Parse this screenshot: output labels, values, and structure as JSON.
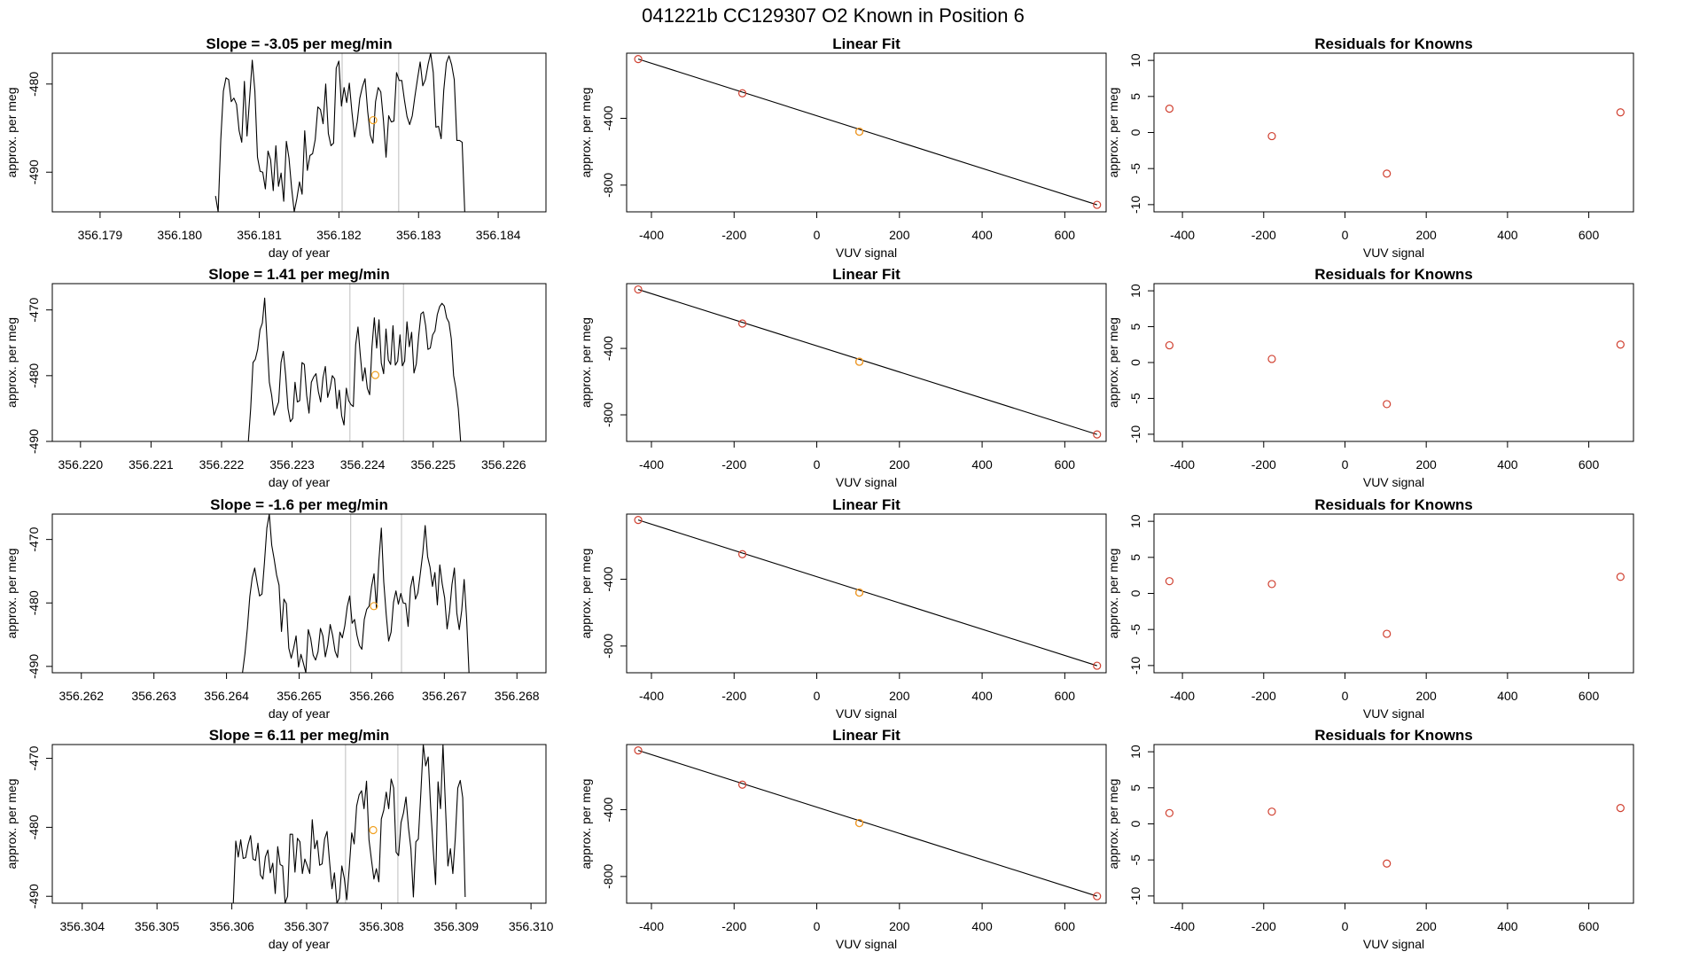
{
  "figure": {
    "title": "041221b     CC129307   O2 Known in Position  6"
  },
  "chart_data": [
    {
      "type": "line",
      "title": "Slope =  -3.05  per meg/min",
      "xlabel": "day of year",
      "ylabel": "approx. per meg",
      "xlim": [
        356.1784,
        356.1846
      ],
      "ylim": [
        -494.5,
        -476.5
      ],
      "xticks": [
        "356.179",
        "356.180",
        "356.181",
        "356.182",
        "356.183",
        "356.184"
      ],
      "yticks": [
        "-480",
        "-490"
      ],
      "vlines": [
        356.18204,
        356.18275
      ],
      "mean_point": [
        356.18243,
        -484.1
      ],
      "x_start": 356.18045,
      "x_end": 356.18358,
      "y": [
        -492.7,
        -494.5,
        -486.3,
        -480.8,
        -479.3,
        -479.5,
        -482,
        -481.6,
        -482.3,
        -485.3,
        -486.6,
        -479.7,
        -485.9,
        -481.6,
        -477.3,
        -480.8,
        -488.3,
        -489.9,
        -490,
        -491.9,
        -487.6,
        -488.6,
        -492.1,
        -487,
        -491.6,
        -490.1,
        -493.3,
        -486.5,
        -488.4,
        -491.8,
        -494.5,
        -493,
        -491.1,
        -492.5,
        -485.3,
        -489.8,
        -488.1,
        -487.9,
        -486.3,
        -482.6,
        -482.9,
        -484.5,
        -480,
        -485.6,
        -487,
        -486.7,
        -478.2,
        -477.4,
        -482.5,
        -480.4,
        -482.1,
        -479.9,
        -483.2,
        -486,
        -484.3,
        -481.6,
        -480.3,
        -479.4,
        -483.1,
        -485.8,
        -486.7,
        -482,
        -480.4,
        -480.9,
        -484.1,
        -488.3,
        -483.6,
        -484.3,
        -484.2,
        -478.7,
        -479.6,
        -479.6,
        -481.8,
        -483.7,
        -484.6,
        -483.6,
        -481.4,
        -479.4,
        -477.5,
        -480.2,
        -479.5,
        -477.8,
        -476.5,
        -478.7,
        -484.9,
        -484.8,
        -486.2,
        -480.7,
        -477.6,
        -476.8,
        -477.8,
        -479.5,
        -486.4,
        -486.4,
        -486.6,
        -494.5
      ]
    },
    {
      "type": "scatter",
      "title": "Linear Fit",
      "xlabel": "VUV signal",
      "ylabel": "approx. per meg",
      "xlim": [
        -460,
        700
      ],
      "ylim": [
        -960,
        -10
      ],
      "xticks": [
        -400,
        -200,
        0,
        200,
        400,
        600
      ],
      "yticks": [
        -400,
        -800
      ],
      "points": [
        [
          -432,
          -45
        ],
        [
          -180,
          -250
        ],
        [
          103,
          -480
        ],
        [
          678,
          -918
        ]
      ],
      "unknown_point": [
        103,
        -480
      ],
      "fit_line": [
        [
          -432,
          -45
        ],
        [
          678,
          -918
        ]
      ]
    },
    {
      "type": "scatter",
      "title": "Residuals for Knowns",
      "xlabel": "VUV signal",
      "ylabel": "approx. per meg",
      "xlim": [
        -470,
        710
      ],
      "ylim": [
        -11,
        11
      ],
      "xticks": [
        -400,
        -200,
        0,
        200,
        400,
        600
      ],
      "yticks": [
        10,
        5,
        0,
        -5,
        -10
      ],
      "points": [
        [
          -432,
          3.3
        ],
        [
          -180,
          -0.5
        ],
        [
          103,
          -5.7
        ],
        [
          678,
          2.8
        ]
      ]
    },
    {
      "type": "line",
      "title": "Slope =  1.41  per meg/min",
      "xlabel": "day of year",
      "ylabel": "approx. per meg",
      "xlim": [
        356.2196,
        356.2266
      ],
      "ylim": [
        -490,
        -466
      ],
      "xticks": [
        "356.220",
        "356.221",
        "356.222",
        "356.223",
        "356.224",
        "356.225",
        "356.226"
      ],
      "yticks": [
        "-470",
        "-480",
        "-490"
      ],
      "vlines": [
        356.22382,
        356.22458
      ],
      "mean_point": [
        356.22418,
        -479.9
      ],
      "x_start": 356.22238,
      "x_end": 356.22539,
      "y": [
        -490,
        -485,
        -478,
        -477.5,
        -476,
        -473,
        -472,
        -468.2,
        -474.6,
        -481,
        -483,
        -486,
        -485,
        -484,
        -478,
        -476.3,
        -480,
        -485,
        -487,
        -486.5,
        -481,
        -484,
        -483.8,
        -478,
        -478.3,
        -483,
        -485.7,
        -481,
        -480.2,
        -479.7,
        -482.4,
        -484,
        -480.3,
        -478.6,
        -483.3,
        -482,
        -480,
        -480.5,
        -485,
        -482.2,
        -486.1,
        -487.5,
        -481.9,
        -483.8,
        -484.4,
        -484.7,
        -475.3,
        -472.6,
        -476.9,
        -480.8,
        -478.8,
        -481.9,
        -482.9,
        -475.6,
        -471.2,
        -475.8,
        -471.5,
        -478.1,
        -479.7,
        -472.9,
        -477.6,
        -478.3,
        -472.4,
        -478.4,
        -477.8,
        -473.8,
        -478.5,
        -477.8,
        -471.8,
        -475.6,
        -473.4,
        -479.6,
        -478.2,
        -474,
        -470.6,
        -470.3,
        -472.4,
        -476,
        -475.8,
        -473.8,
        -473.2,
        -470.7,
        -469.5,
        -469,
        -469.4,
        -471.2,
        -471.9,
        -474.4,
        -480,
        -482,
        -485,
        -490
      ]
    },
    {
      "type": "scatter",
      "title": "Linear Fit",
      "xlabel": "VUV signal",
      "ylabel": "approx. per meg",
      "xlim": [
        -460,
        700
      ],
      "ylim": [
        -960,
        -10
      ],
      "xticks": [
        -400,
        -200,
        0,
        200,
        400,
        600
      ],
      "yticks": [
        -400,
        -800
      ],
      "points": [
        [
          -432,
          -45
        ],
        [
          -180,
          -250
        ],
        [
          103,
          -480
        ],
        [
          678,
          -918
        ]
      ],
      "unknown_point": [
        103,
        -480
      ],
      "fit_line": [
        [
          -432,
          -45
        ],
        [
          678,
          -918
        ]
      ]
    },
    {
      "type": "scatter",
      "title": "Residuals for Knowns",
      "xlabel": "VUV signal",
      "ylabel": "approx. per meg",
      "xlim": [
        -470,
        710
      ],
      "ylim": [
        -11,
        11
      ],
      "xticks": [
        -400,
        -200,
        0,
        200,
        400,
        600
      ],
      "yticks": [
        10,
        5,
        0,
        -5,
        -10
      ],
      "points": [
        [
          -432,
          2.4
        ],
        [
          -180,
          0.5
        ],
        [
          103,
          -5.8
        ],
        [
          678,
          2.5
        ]
      ]
    },
    {
      "type": "line",
      "title": "Slope =  -1.6  per meg/min",
      "xlabel": "day of year",
      "ylabel": "approx. per meg",
      "xlim": [
        356.2616,
        356.2684
      ],
      "ylim": [
        -491,
        -466
      ],
      "xticks": [
        "356.262",
        "356.263",
        "356.264",
        "356.265",
        "356.266",
        "356.267",
        "356.268"
      ],
      "yticks": [
        "-470",
        "-480",
        "-490"
      ],
      "vlines": [
        356.26571,
        356.26641
      ],
      "mean_point": [
        356.26603,
        -480.5
      ],
      "x_start": 356.26422,
      "x_end": 356.26734,
      "y": [
        -491,
        -488,
        -484,
        -479,
        -476,
        -474.5,
        -476.8,
        -478.9,
        -478.6,
        -473.7,
        -468.2,
        -466,
        -470.9,
        -473.1,
        -475.6,
        -477.2,
        -484.5,
        -479.4,
        -480.1,
        -487.1,
        -488.7,
        -487.1,
        -485.2,
        -490.1,
        -488.1,
        -489.5,
        -491,
        -484.2,
        -485.6,
        -488.2,
        -489,
        -487.7,
        -484,
        -485.2,
        -488.5,
        -486.6,
        -483.4,
        -485.1,
        -487.6,
        -488.6,
        -484.6,
        -485.5,
        -483.6,
        -480.6,
        -478.9,
        -483.2,
        -482.6,
        -485.1,
        -486.7,
        -487.3,
        -482.6,
        -481,
        -480.5,
        -477.4,
        -475.4,
        -480.8,
        -473.3,
        -468.2,
        -476.7,
        -481.8,
        -486,
        -484.6,
        -479.9,
        -478.1,
        -480.2,
        -478.5,
        -480,
        -480.1,
        -483.7,
        -477.6,
        -475.8,
        -479.4,
        -478.4,
        -475.4,
        -472.2,
        -467.8,
        -472.7,
        -474.4,
        -477.4,
        -475.2,
        -480.3,
        -474,
        -477,
        -479.2,
        -484.1,
        -481.4,
        -477.1,
        -474.5,
        -481.6,
        -484.2,
        -481.2,
        -476.3,
        -482.4,
        -491
      ]
    },
    {
      "type": "scatter",
      "title": "Linear Fit",
      "xlabel": "VUV signal",
      "ylabel": "approx. per meg",
      "xlim": [
        -460,
        700
      ],
      "ylim": [
        -960,
        -10
      ],
      "xticks": [
        -400,
        -200,
        0,
        200,
        400,
        600
      ],
      "yticks": [
        -400,
        -800
      ],
      "points": [
        [
          -432,
          -45
        ],
        [
          -180,
          -250
        ],
        [
          103,
          -480
        ],
        [
          678,
          -918
        ]
      ],
      "unknown_point": [
        103,
        -480
      ],
      "fit_line": [
        [
          -432,
          -45
        ],
        [
          678,
          -918
        ]
      ]
    },
    {
      "type": "scatter",
      "title": "Residuals for Knowns",
      "xlabel": "VUV signal",
      "ylabel": "approx. per meg",
      "xlim": [
        -470,
        710
      ],
      "ylim": [
        -11,
        11
      ],
      "xticks": [
        -400,
        -200,
        0,
        200,
        400,
        600
      ],
      "yticks": [
        10,
        5,
        0,
        -5,
        -10
      ],
      "points": [
        [
          -432,
          1.7
        ],
        [
          -180,
          1.3
        ],
        [
          103,
          -5.6
        ],
        [
          678,
          2.3
        ]
      ]
    },
    {
      "type": "line",
      "title": "Slope =  6.11  per meg/min",
      "xlabel": "day of year",
      "ylabel": "approx. per meg",
      "xlim": [
        356.3036,
        356.3102
      ],
      "ylim": [
        -491,
        -468
      ],
      "xticks": [
        "356.304",
        "356.305",
        "356.306",
        "356.307",
        "356.308",
        "356.309",
        "356.310"
      ],
      "yticks": [
        "-470",
        "-480",
        "-490"
      ],
      "vlines": [
        356.30752,
        356.30822
      ],
      "mean_point": [
        356.30789,
        -480.4
      ],
      "x_start": 356.30602,
      "x_end": 356.30912,
      "y": [
        -491,
        -482,
        -484.3,
        -481.8,
        -484.5,
        -484.4,
        -482.5,
        -481.2,
        -484.6,
        -484.8,
        -482.3,
        -486.9,
        -487.5,
        -484.3,
        -483.3,
        -486.6,
        -485.2,
        -489.6,
        -482.8,
        -485.4,
        -485.6,
        -491,
        -490,
        -481,
        -481,
        -486.5,
        -481.6,
        -482.1,
        -486.7,
        -484.6,
        -485.6,
        -486.7,
        -478.9,
        -483.1,
        -481.9,
        -485.5,
        -485.3,
        -481.7,
        -480.6,
        -484.9,
        -488.9,
        -486.6,
        -491,
        -490.3,
        -485.6,
        -487.4,
        -490.5,
        -485.9,
        -480.8,
        -482.4,
        -476.9,
        -475.3,
        -474.7,
        -477.3,
        -473.3,
        -481.8,
        -484.7,
        -487.5,
        -486,
        -487.9,
        -478.8,
        -477.5,
        -474.9,
        -477.3,
        -473,
        -474.3,
        -483.6,
        -484.1,
        -479.3,
        -477.9,
        -475.6,
        -480,
        -483.1,
        -490.1,
        -482.1,
        -481.7,
        -475.2,
        -468,
        -471.1,
        -469.8,
        -477.1,
        -483,
        -488.3,
        -473.4,
        -477.3,
        -468,
        -476.9,
        -485.6,
        -483.1,
        -486.7,
        -481.5,
        -474.3,
        -473.2,
        -475.7,
        -490.1
      ]
    },
    {
      "type": "scatter",
      "title": "Linear Fit",
      "xlabel": "VUV signal",
      "ylabel": "approx. per meg",
      "xlim": [
        -460,
        700
      ],
      "ylim": [
        -960,
        -10
      ],
      "xticks": [
        -400,
        -200,
        0,
        200,
        400,
        600
      ],
      "yticks": [
        -400,
        -800
      ],
      "points": [
        [
          -432,
          -45
        ],
        [
          -180,
          -250
        ],
        [
          103,
          -480
        ],
        [
          678,
          -918
        ]
      ],
      "unknown_point": [
        103,
        -480
      ],
      "fit_line": [
        [
          -432,
          -45
        ],
        [
          678,
          -918
        ]
      ]
    },
    {
      "type": "scatter",
      "title": "Residuals for Knowns",
      "xlabel": "VUV signal",
      "ylabel": "approx. per meg",
      "xlim": [
        -470,
        710
      ],
      "ylim": [
        -11,
        11
      ],
      "xticks": [
        -400,
        -200,
        0,
        200,
        400,
        600
      ],
      "yticks": [
        10,
        5,
        0,
        -5,
        -10
      ],
      "points": [
        [
          -432,
          1.5
        ],
        [
          -180,
          1.7
        ],
        [
          103,
          -5.5
        ],
        [
          678,
          2.2
        ]
      ]
    }
  ]
}
